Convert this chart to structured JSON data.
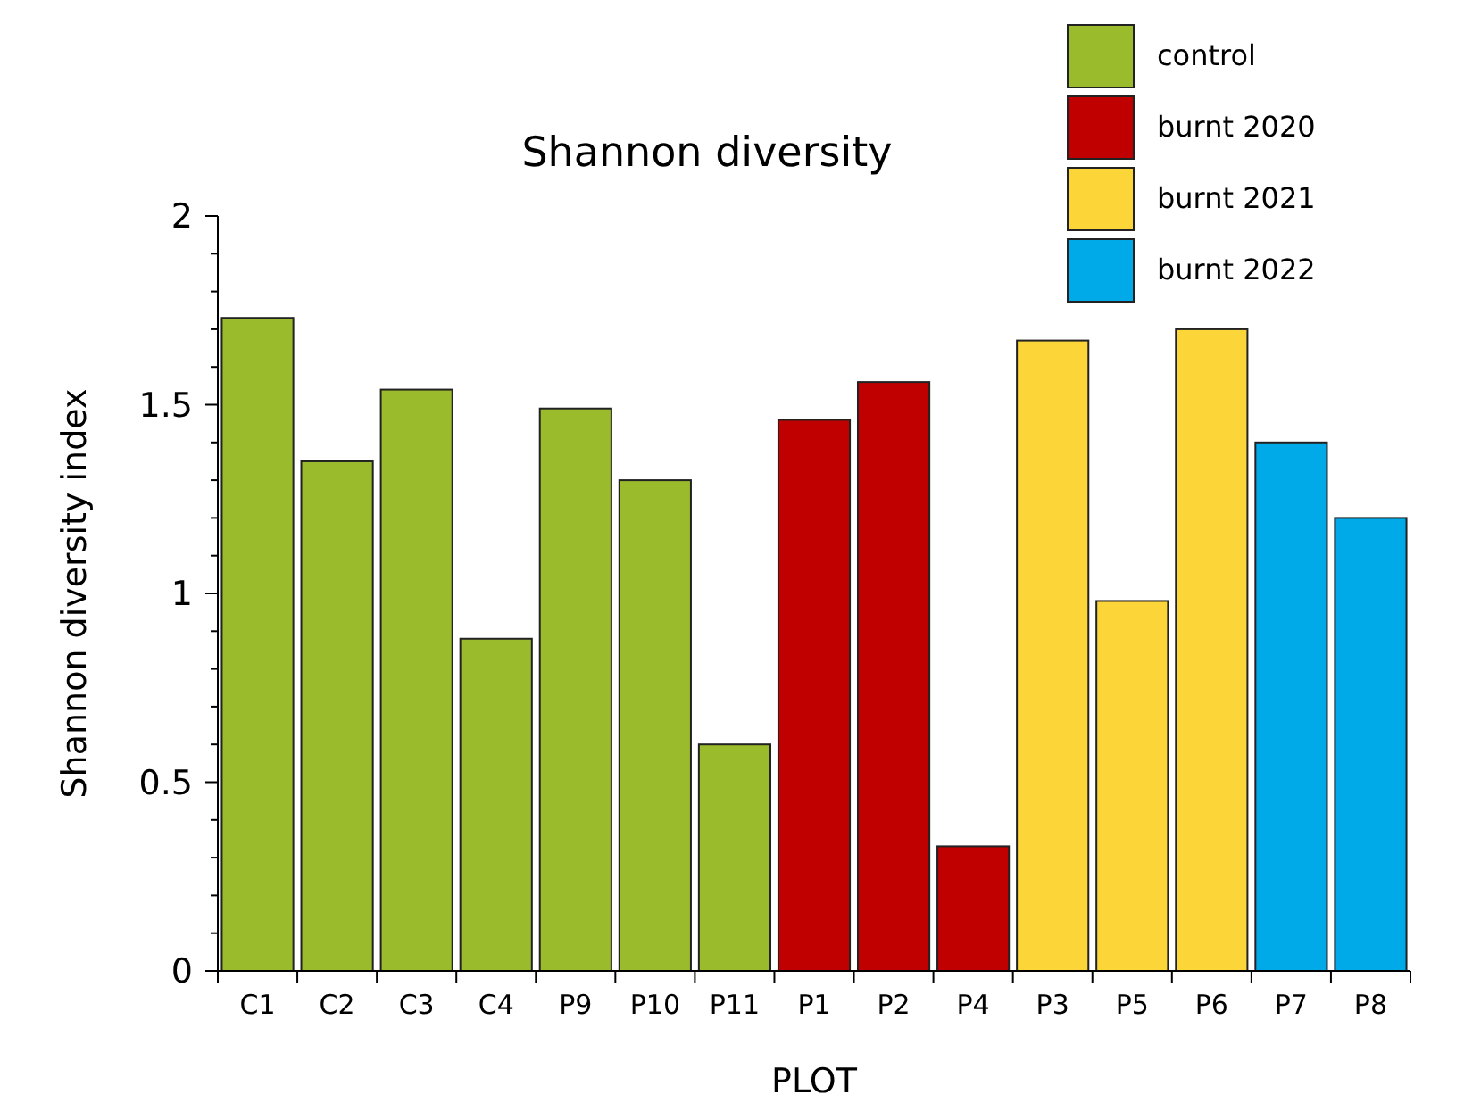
{
  "chart_data": {
    "type": "bar",
    "title": "Shannon diversity",
    "xlabel": "PLOT",
    "ylabel": "Shannon diversity index",
    "categories": [
      "C1",
      "C2",
      "C3",
      "C4",
      "P9",
      "P10",
      "P11",
      "P1",
      "P2",
      "P4",
      "P3",
      "P5",
      "P6",
      "P7",
      "P8"
    ],
    "series": [
      {
        "name": "control",
        "color": "#9abb2c",
        "values": [
          1.73,
          1.35,
          1.54,
          0.88,
          1.49,
          1.3,
          0.6,
          null,
          null,
          null,
          null,
          null,
          null,
          null,
          null
        ]
      },
      {
        "name": "burnt 2020",
        "color": "#c00000",
        "values": [
          null,
          null,
          null,
          null,
          null,
          null,
          null,
          1.46,
          1.56,
          0.33,
          null,
          null,
          null,
          null,
          null
        ]
      },
      {
        "name": "burnt 2021",
        "color": "#fcd638",
        "values": [
          null,
          null,
          null,
          null,
          null,
          null,
          null,
          null,
          null,
          null,
          1.67,
          0.98,
          1.7,
          null,
          null
        ]
      },
      {
        "name": "burnt 2022",
        "color": "#00aae8",
        "values": [
          null,
          null,
          null,
          null,
          null,
          null,
          null,
          null,
          null,
          null,
          null,
          null,
          null,
          1.4,
          1.2
        ]
      }
    ],
    "ylim": [
      0,
      2
    ],
    "yticks": [
      0,
      {
        "value": 0.1,
        "label": null
      },
      {
        "value": 0.2,
        "label": null
      },
      {
        "value": 0.3,
        "label": null
      },
      {
        "value": 0.4,
        "label": null
      },
      0.5,
      {
        "value": 0.6,
        "label": null
      },
      {
        "value": 0.7,
        "label": null
      },
      {
        "value": 0.8,
        "label": null
      },
      {
        "value": 0.9,
        "label": null
      },
      1,
      {
        "value": 1.1,
        "label": null
      },
      {
        "value": 1.2,
        "label": null
      },
      {
        "value": 1.3,
        "label": null
      },
      {
        "value": 1.4,
        "label": null
      },
      1.5,
      {
        "value": 1.6,
        "label": null
      },
      {
        "value": 1.7,
        "label": null
      },
      {
        "value": 1.8,
        "label": null
      },
      {
        "value": 1.9,
        "label": null
      },
      2
    ],
    "grid": false,
    "legend": "top right"
  }
}
